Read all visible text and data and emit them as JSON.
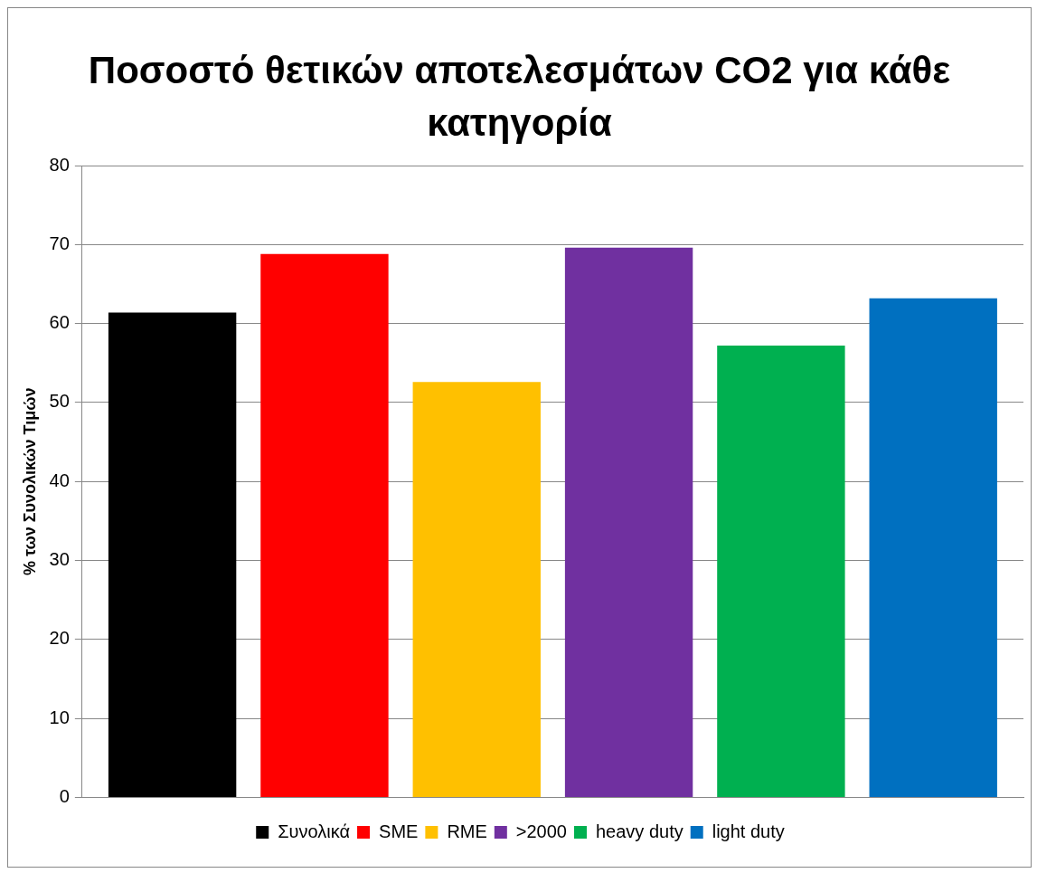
{
  "chart_data": {
    "type": "bar",
    "title": "Ποσοστό θετικών αποτελεσμάτων CO2 για κάθε κατηγορία",
    "ylabel": "% των Συνολικών Τιμών",
    "categories": [
      null
    ],
    "series": [
      {
        "name": "Συνολικά",
        "color": "#000000",
        "values": [
          61.4
        ]
      },
      {
        "name": "SME",
        "color": "#ff0000",
        "values": [
          68.8
        ]
      },
      {
        "name": "RME",
        "color": "#ffc000",
        "values": [
          52.6
        ]
      },
      {
        "name": ">2000",
        "color": "#7030a0",
        "values": [
          69.6
        ]
      },
      {
        "name": "heavy duty",
        "color": "#00b050",
        "values": [
          57.2
        ]
      },
      {
        "name": "light duty",
        "color": "#0070c0",
        "values": [
          63.2
        ]
      }
    ],
    "ylim": [
      0,
      80
    ],
    "yticks": [
      0,
      10,
      20,
      30,
      40,
      50,
      60,
      70,
      80
    ],
    "grid": "y",
    "legend": "bottom"
  }
}
